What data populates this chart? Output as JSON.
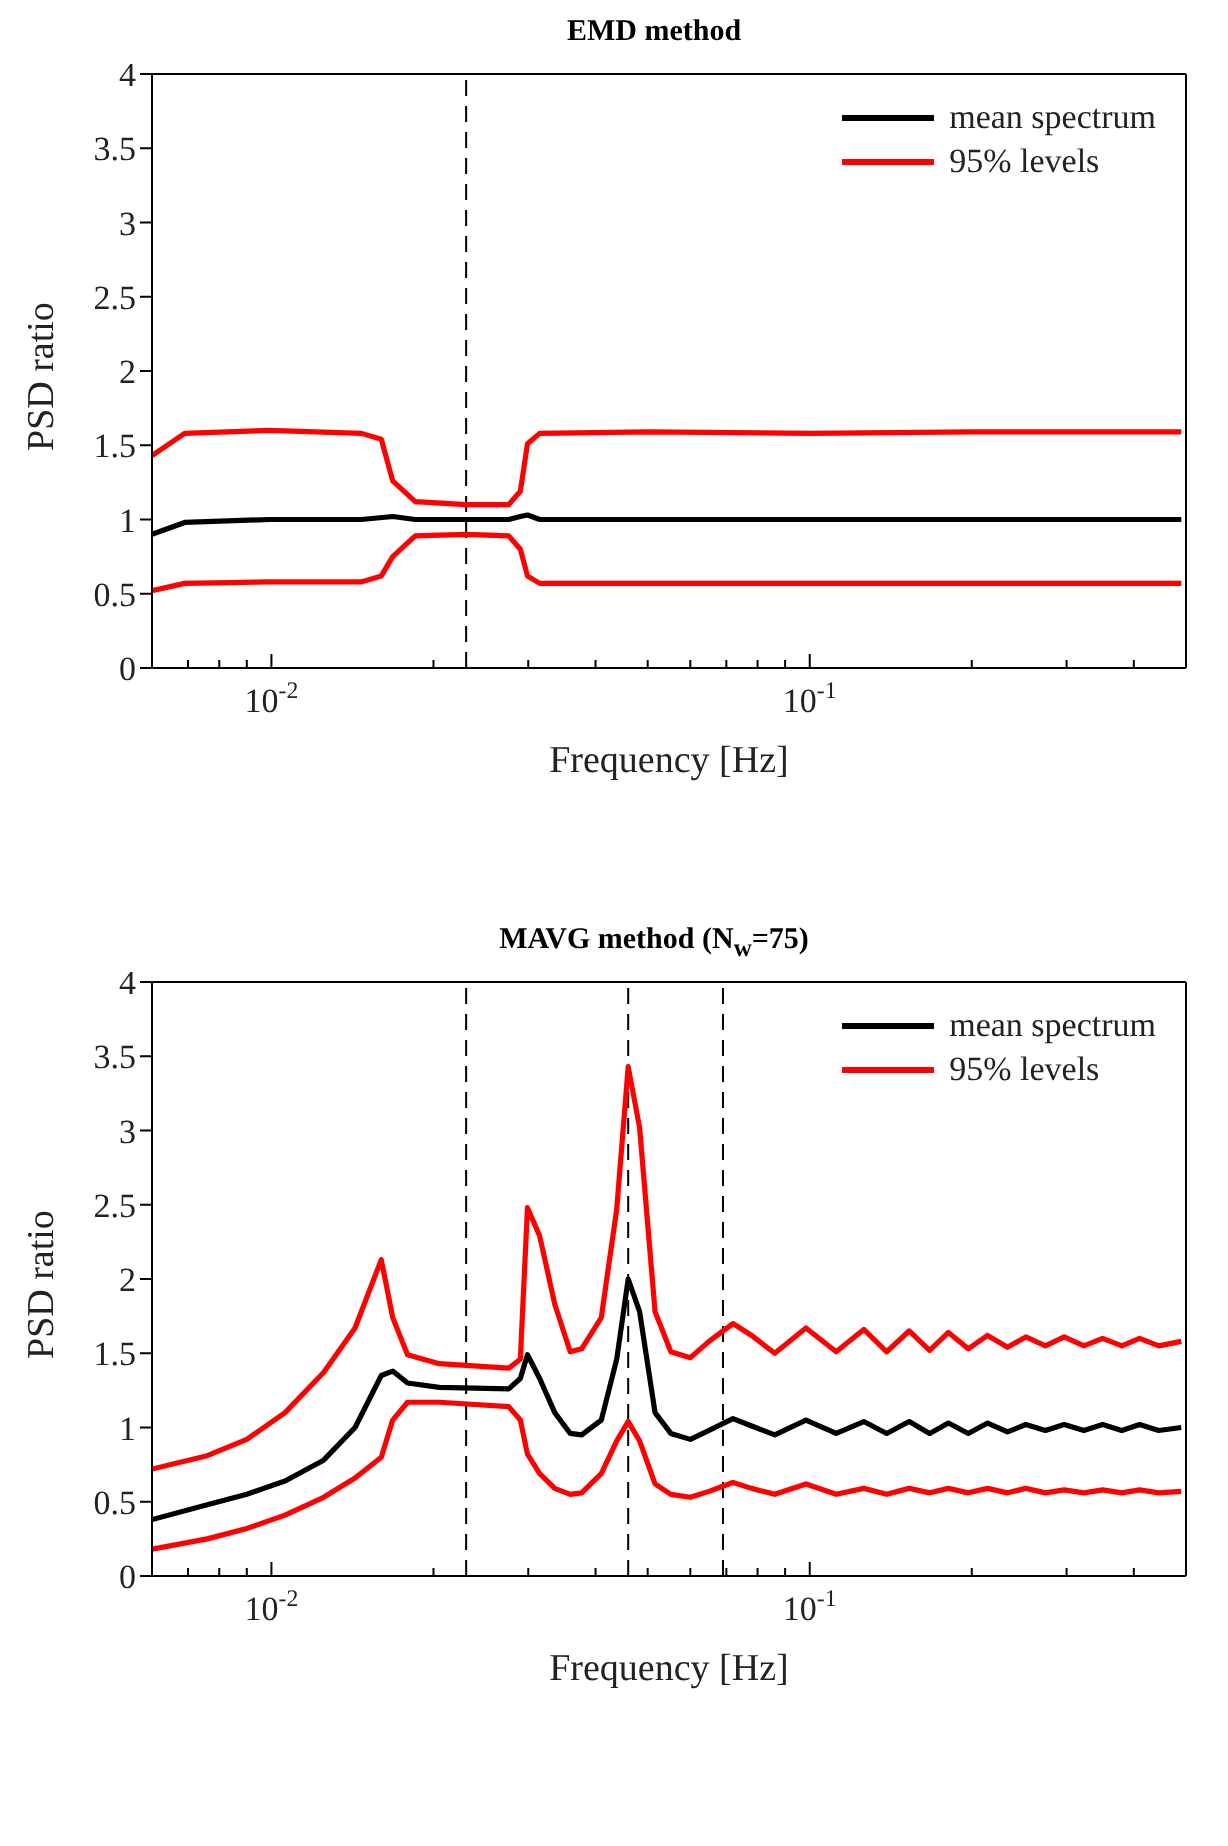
{
  "chart_data": [
    {
      "type": "line",
      "title": "EMD method",
      "xlabel": "Frequency [Hz]",
      "ylabel": "PSD ratio",
      "log": "x",
      "legend": "top right",
      "marker": "none",
      "line_style": "solid",
      "xlim": [
        0.006,
        0.5
      ],
      "ylim": [
        0,
        4
      ],
      "xticks": [
        {
          "value": 0.006,
          "label": null
        },
        {
          "value": 0.007,
          "label": null
        },
        {
          "value": 0.008,
          "label": null
        },
        {
          "value": 0.009,
          "label": null
        },
        {
          "value": 0.01,
          "label": "10$^{-2}$"
        },
        {
          "value": 0.02,
          "label": null
        },
        {
          "value": 0.03,
          "label": null
        },
        {
          "value": 0.04,
          "label": null
        },
        {
          "value": 0.05,
          "label": null
        },
        {
          "value": 0.06,
          "label": null
        },
        {
          "value": 0.07,
          "label": null
        },
        {
          "value": 0.08,
          "label": null
        },
        {
          "value": 0.09,
          "label": null
        },
        {
          "value": 0.1,
          "label": "10$^{-1}$"
        },
        {
          "value": 0.2,
          "label": null
        },
        {
          "value": 0.3,
          "label": null
        },
        {
          "value": 0.4,
          "label": null
        },
        {
          "value": 0.5,
          "label": null
        }
      ],
      "yticks": [
        0,
        0.5,
        1,
        1.5,
        2,
        2.5,
        3,
        3.5,
        4
      ],
      "ref_lines": [
        {
          "axis": "x",
          "value": 0.023,
          "color": "#000000",
          "line_style": "dashed"
        }
      ],
      "series": [
        {
          "name": "mean spectrum",
          "color": "#000000",
          "x": [
            0.006,
            0.0069,
            0.0099,
            0.0147,
            0.0168,
            0.0185,
            0.023,
            0.0276,
            0.029,
            0.0299,
            0.0315,
            0.05,
            0.1,
            0.2,
            0.3,
            0.49
          ],
          "values": [
            0.9,
            0.98,
            1.0,
            1.0,
            1.02,
            1.0,
            1.0,
            1.0,
            1.02,
            1.03,
            1.0,
            1.0,
            1.0,
            1.0,
            1.0,
            1.0
          ]
        },
        {
          "name": "95% levels",
          "color": "#ff0000",
          "x": [
            0.006,
            0.0069,
            0.0099,
            0.0147,
            0.016,
            0.0168,
            0.0185,
            0.023,
            0.0276,
            0.029,
            0.0299,
            0.0315,
            0.05,
            0.1,
            0.2,
            0.3,
            0.49
          ],
          "values": [
            1.43,
            1.58,
            1.6,
            1.58,
            1.54,
            1.26,
            1.12,
            1.1,
            1.1,
            1.19,
            1.51,
            1.58,
            1.59,
            1.58,
            1.59,
            1.59,
            1.59
          ]
        },
        {
          "color": "#ff0000",
          "x": [
            0.006,
            0.0069,
            0.0099,
            0.0147,
            0.016,
            0.0168,
            0.0185,
            0.023,
            0.0276,
            0.029,
            0.0299,
            0.0315,
            0.05,
            0.1,
            0.2,
            0.3,
            0.49
          ],
          "values": [
            0.52,
            0.57,
            0.58,
            0.58,
            0.62,
            0.75,
            0.89,
            0.9,
            0.89,
            0.8,
            0.62,
            0.57,
            0.57,
            0.57,
            0.57,
            0.57,
            0.57
          ]
        }
      ]
    },
    {
      "type": "line",
      "title": "MAVG method (N$_{w}$=75)",
      "xlabel": "Frequency [Hz]",
      "ylabel": "PSD ratio",
      "log": "x",
      "legend": "top right",
      "marker": "none",
      "line_style": "solid",
      "xlim": [
        0.006,
        0.5
      ],
      "ylim": [
        0,
        4
      ],
      "xticks": [
        {
          "value": 0.006,
          "label": null
        },
        {
          "value": 0.007,
          "label": null
        },
        {
          "value": 0.008,
          "label": null
        },
        {
          "value": 0.009,
          "label": null
        },
        {
          "value": 0.01,
          "label": "10$^{-2}$"
        },
        {
          "value": 0.02,
          "label": null
        },
        {
          "value": 0.03,
          "label": null
        },
        {
          "value": 0.04,
          "label": null
        },
        {
          "value": 0.05,
          "label": null
        },
        {
          "value": 0.06,
          "label": null
        },
        {
          "value": 0.07,
          "label": null
        },
        {
          "value": 0.08,
          "label": null
        },
        {
          "value": 0.09,
          "label": null
        },
        {
          "value": 0.1,
          "label": "10$^{-1}$"
        },
        {
          "value": 0.2,
          "label": null
        },
        {
          "value": 0.3,
          "label": null
        },
        {
          "value": 0.4,
          "label": null
        },
        {
          "value": 0.5,
          "label": null
        }
      ],
      "yticks": [
        0,
        0.5,
        1,
        1.5,
        2,
        2.5,
        3,
        3.5,
        4
      ],
      "ref_lines": [
        {
          "axis": "x",
          "value": 0.023,
          "color": "#000000",
          "line_style": "dashed"
        },
        {
          "axis": "x",
          "value": 0.046,
          "color": "#000000",
          "line_style": "dashed"
        },
        {
          "axis": "x",
          "value": 0.069,
          "color": "#000000",
          "line_style": "dashed"
        }
      ],
      "x": [
        0.006,
        0.0076,
        0.009,
        0.0106,
        0.0125,
        0.0143,
        0.016,
        0.0168,
        0.0179,
        0.0205,
        0.0276,
        0.029,
        0.0299,
        0.0315,
        0.0336,
        0.0359,
        0.0377,
        0.041,
        0.0438,
        0.046,
        0.0483,
        0.0516,
        0.0552,
        0.06,
        0.065,
        0.072,
        0.078,
        0.0861,
        0.0984,
        0.112,
        0.126,
        0.139,
        0.153,
        0.167,
        0.181,
        0.197,
        0.214,
        0.233,
        0.252,
        0.274,
        0.297,
        0.323,
        0.35,
        0.38,
        0.41,
        0.445,
        0.49
      ],
      "series": [
        {
          "name": "mean spectrum",
          "color": "#000000",
          "values": [
            0.38,
            0.48,
            0.55,
            0.64,
            0.78,
            1.0,
            1.35,
            1.38,
            1.3,
            1.27,
            1.26,
            1.33,
            1.49,
            1.33,
            1.1,
            0.96,
            0.95,
            1.05,
            1.46,
            2.0,
            1.78,
            1.1,
            0.96,
            0.92,
            0.98,
            1.06,
            1.01,
            0.95,
            1.05,
            0.96,
            1.04,
            0.96,
            1.04,
            0.96,
            1.03,
            0.96,
            1.03,
            0.97,
            1.02,
            0.98,
            1.02,
            0.98,
            1.02,
            0.98,
            1.02,
            0.98,
            1.0
          ]
        },
        {
          "name": "95% levels",
          "color": "#ff0000",
          "values": [
            0.72,
            0.81,
            0.92,
            1.1,
            1.37,
            1.67,
            2.13,
            1.74,
            1.49,
            1.43,
            1.4,
            1.46,
            2.48,
            2.29,
            1.83,
            1.51,
            1.53,
            1.74,
            2.47,
            3.43,
            3.02,
            1.78,
            1.51,
            1.47,
            1.58,
            1.7,
            1.62,
            1.5,
            1.67,
            1.51,
            1.66,
            1.51,
            1.65,
            1.52,
            1.64,
            1.53,
            1.62,
            1.54,
            1.61,
            1.55,
            1.61,
            1.55,
            1.6,
            1.55,
            1.6,
            1.55,
            1.58
          ]
        },
        {
          "color": "#ff0000",
          "values": [
            0.18,
            0.25,
            0.32,
            0.41,
            0.53,
            0.66,
            0.8,
            1.05,
            1.17,
            1.17,
            1.14,
            1.05,
            0.82,
            0.69,
            0.59,
            0.55,
            0.56,
            0.69,
            0.91,
            1.04,
            0.91,
            0.62,
            0.55,
            0.53,
            0.57,
            0.63,
            0.59,
            0.55,
            0.62,
            0.55,
            0.59,
            0.55,
            0.59,
            0.56,
            0.59,
            0.56,
            0.59,
            0.56,
            0.59,
            0.56,
            0.58,
            0.56,
            0.58,
            0.56,
            0.58,
            0.56,
            0.57
          ]
        }
      ]
    }
  ]
}
